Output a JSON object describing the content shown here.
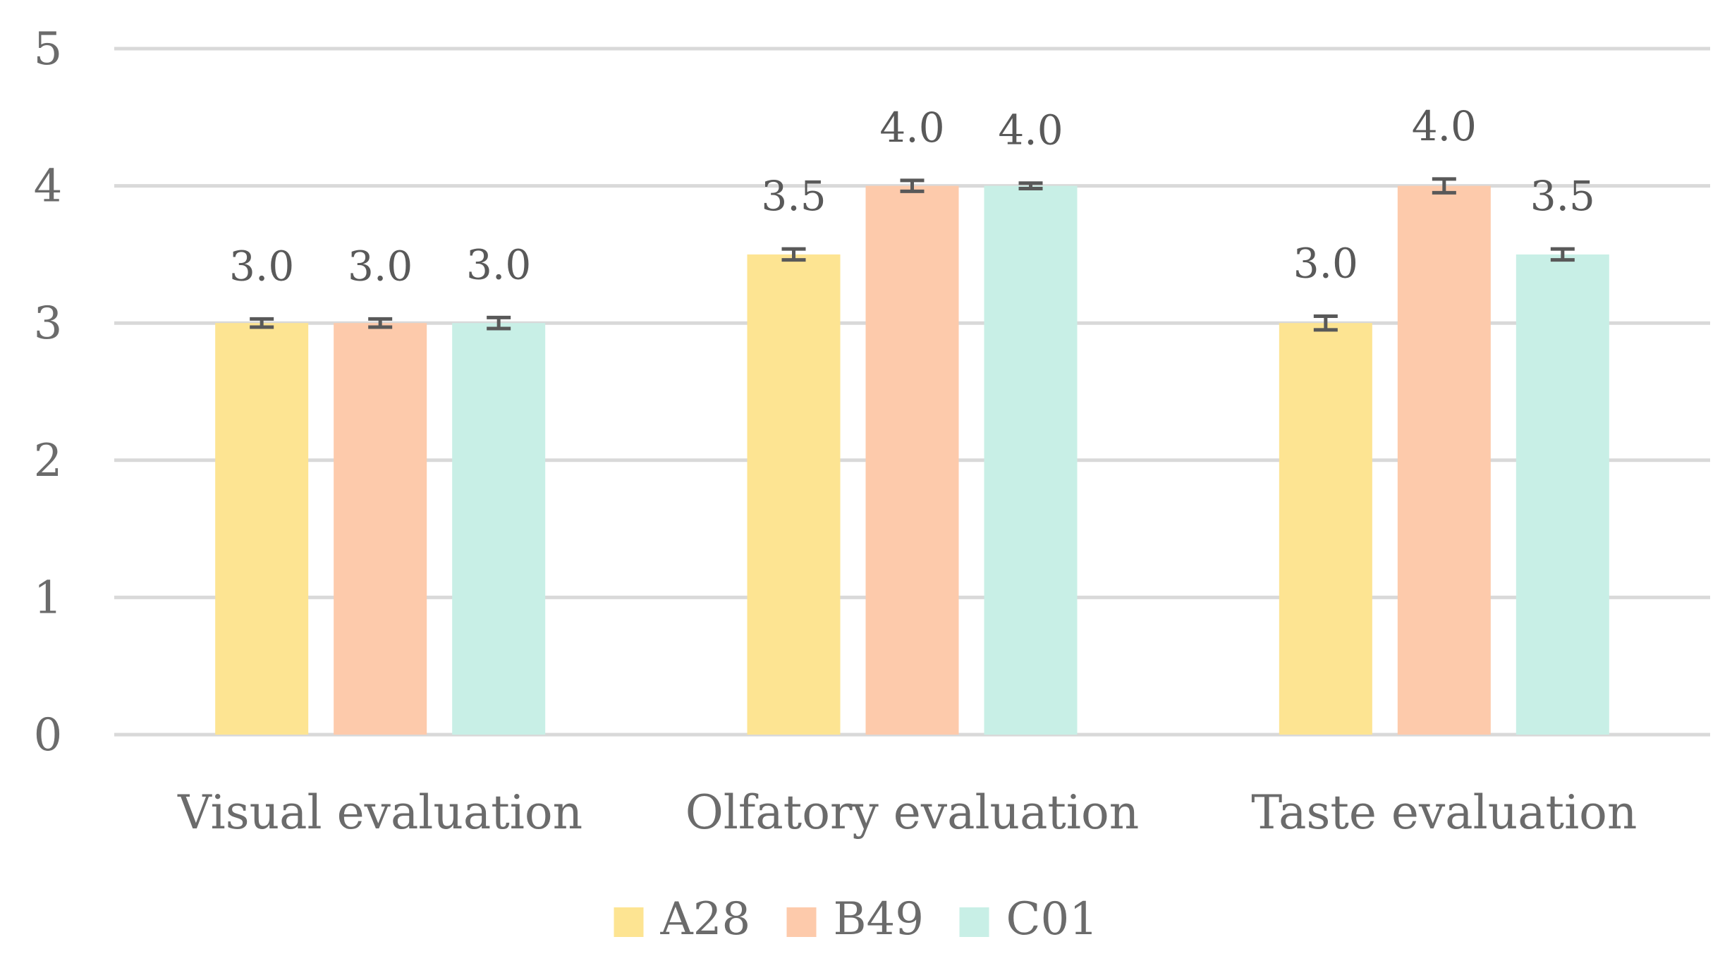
{
  "chart_data": {
    "type": "bar",
    "title": "",
    "xlabel": "",
    "ylabel": "",
    "ylim": [
      0,
      5
    ],
    "yticks": [
      "0",
      "1",
      "2",
      "3",
      "4",
      "5"
    ],
    "grid": true,
    "legend_position": "bottom",
    "categories": [
      "Visual evaluation",
      "Olfatory evaluation",
      "Taste evaluation"
    ],
    "series": [
      {
        "name": "A28",
        "color": "#fde492",
        "values": [
          3.0,
          3.5,
          3.0
        ],
        "labels": [
          "3.0",
          "3.5",
          "3.0"
        ],
        "errors": [
          0.03,
          0.04,
          0.05
        ]
      },
      {
        "name": "B49",
        "color": "#fdcaab",
        "values": [
          3.0,
          4.0,
          4.0
        ],
        "labels": [
          "3.0",
          "4.0",
          "4.0"
        ],
        "errors": [
          0.03,
          0.04,
          0.05
        ]
      },
      {
        "name": "C01",
        "color": "#c8efe6",
        "values": [
          3.0,
          4.0,
          3.5
        ],
        "labels": [
          "3.0",
          "4.0",
          "3.5"
        ],
        "errors": [
          0.04,
          0.02,
          0.04
        ]
      }
    ]
  }
}
